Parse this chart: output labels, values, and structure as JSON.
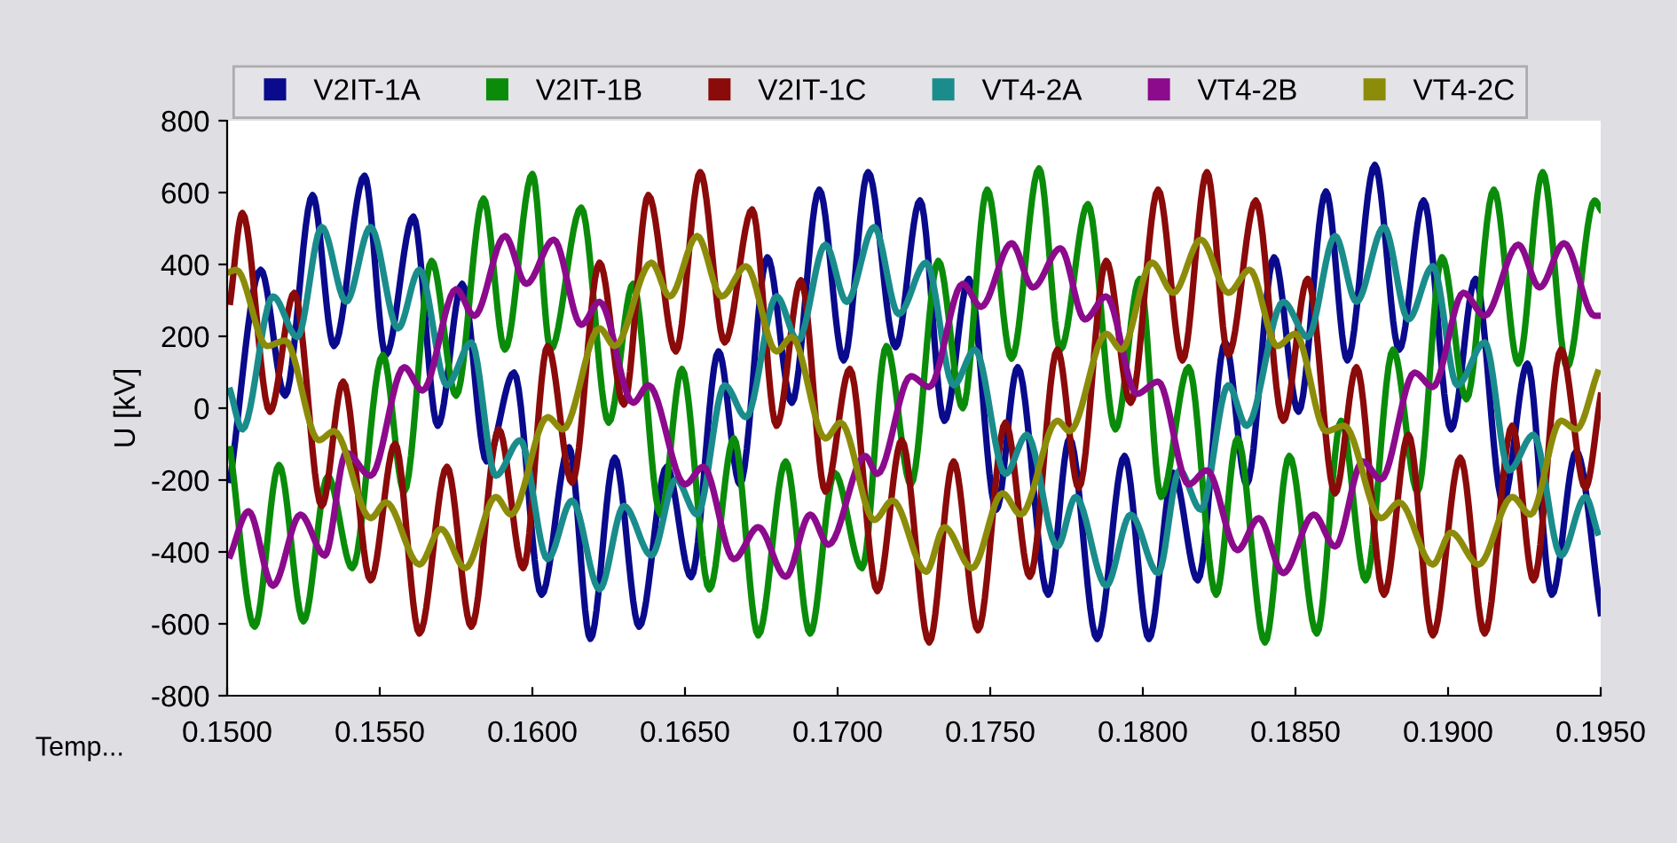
{
  "chart_data": {
    "type": "line",
    "ylabel": "U [kV]",
    "xlabel": "Temp...",
    "xlim": [
      0.15,
      0.195
    ],
    "xticks": [
      {
        "value": 0.15,
        "label": "0.1500"
      },
      {
        "value": 0.155,
        "label": "0.1550"
      },
      {
        "value": 0.16,
        "label": "0.1600"
      },
      {
        "value": 0.165,
        "label": "0.1650"
      },
      {
        "value": 0.17,
        "label": "0.1700"
      },
      {
        "value": 0.175,
        "label": "0.1750"
      },
      {
        "value": 0.18,
        "label": "0.1800"
      },
      {
        "value": 0.185,
        "label": "0.1850"
      },
      {
        "value": 0.19,
        "label": "0.1900"
      },
      {
        "value": 0.195,
        "label": "0.1950"
      }
    ],
    "ylim": [
      -800,
      800
    ],
    "yticks": [
      -800,
      -600,
      -400,
      -200,
      0,
      200,
      400,
      600,
      800
    ],
    "grid": false,
    "legend": "top",
    "marker": "none",
    "line_style": "solid",
    "series": [
      {
        "name": "V2IT-1A",
        "color": "#0a0a8c",
        "x": [
          0.1501,
          0.1511,
          0.1519,
          0.1528,
          0.1535,
          0.1545,
          0.1552,
          0.1561,
          0.1569,
          0.1577,
          0.1585,
          0.1594,
          0.1603,
          0.1612,
          0.1619,
          0.1627,
          0.1635,
          0.1644,
          0.1652,
          0.1661,
          0.1668,
          0.1677,
          0.1685,
          0.1694,
          0.1702,
          0.171,
          0.1719,
          0.1727,
          0.1735,
          0.1743,
          0.1752,
          0.1759,
          0.1769,
          0.1776,
          0.1785,
          0.1794,
          0.1802,
          0.181,
          0.1818,
          0.1827,
          0.1834,
          0.1843,
          0.1851,
          0.186,
          0.1867,
          0.1876,
          0.1884,
          0.1892,
          0.1901,
          0.1909,
          0.1918,
          0.1926,
          0.1934,
          0.1942,
          0.195
        ],
        "values": [
          -200,
          385,
          35,
          593,
          173,
          647,
          148,
          533,
          -49,
          346,
          -148,
          99,
          -519,
          -109,
          -642,
          -138,
          -608,
          -163,
          -470,
          158,
          -212,
          420,
          15,
          608,
          133,
          657,
          170,
          578,
          -35,
          360,
          -282,
          114,
          -519,
          -84,
          -642,
          -133,
          -642,
          -180,
          -479,
          183,
          -212,
          420,
          -10,
          603,
          133,
          677,
          163,
          578,
          -59,
          360,
          -262,
          124,
          -519,
          -120,
          -570
        ]
      },
      {
        "name": "V2IT-1B",
        "color": "#0a8c0a",
        "x": [
          0.1501,
          0.1509,
          0.1517,
          0.1525,
          0.1533,
          0.1541,
          0.1551,
          0.1558,
          0.1567,
          0.1575,
          0.1584,
          0.1591,
          0.16,
          0.1606,
          0.1616,
          0.1625,
          0.1633,
          0.1642,
          0.1649,
          0.1658,
          0.1666,
          0.1674,
          0.1683,
          0.1691,
          0.1699,
          0.1708,
          0.1716,
          0.1724,
          0.1733,
          0.1741,
          0.1749,
          0.1757,
          0.1766,
          0.1773,
          0.1782,
          0.1791,
          0.1799,
          0.1806,
          0.1815,
          0.1824,
          0.1831,
          0.184,
          0.1848,
          0.1857,
          0.1865,
          0.1873,
          0.1882,
          0.189,
          0.1898,
          0.1906,
          0.1915,
          0.1923,
          0.1931,
          0.1939,
          0.1948,
          0.195
        ],
        "values": [
          -114,
          -608,
          -158,
          -593,
          -190,
          -445,
          148,
          -232,
          410,
          35,
          583,
          163,
          652,
          163,
          558,
          -40,
          346,
          -296,
          109,
          -504,
          -84,
          -632,
          -148,
          -627,
          -180,
          -445,
          173,
          -212,
          410,
          0,
          608,
          138,
          667,
          163,
          568,
          -59,
          360,
          -247,
          114,
          -519,
          -84,
          -652,
          -133,
          -627,
          -35,
          -479,
          163,
          -232,
          420,
          25,
          608,
          124,
          657,
          114,
          578,
          553
        ]
      },
      {
        "name": "V2IT-1C",
        "color": "#8b0a0a",
        "x": [
          0.1501,
          0.1505,
          0.1514,
          0.1522,
          0.1531,
          0.1538,
          0.1547,
          0.1555,
          0.1563,
          0.1572,
          0.158,
          0.1589,
          0.1597,
          0.1605,
          0.1613,
          0.1622,
          0.163,
          0.1638,
          0.1647,
          0.1655,
          0.1663,
          0.1672,
          0.168,
          0.1688,
          0.1696,
          0.1704,
          0.1713,
          0.1721,
          0.173,
          0.1738,
          0.1746,
          0.1755,
          0.1763,
          0.1772,
          0.1779,
          0.1788,
          0.1796,
          0.1805,
          0.1813,
          0.1821,
          0.1828,
          0.1837,
          0.1846,
          0.1854,
          0.1863,
          0.187,
          0.1879,
          0.1887,
          0.1895,
          0.1904,
          0.1912,
          0.1921,
          0.1928,
          0.1937,
          0.1945,
          0.195
        ],
        "values": [
          296,
          543,
          -10,
          321,
          -272,
          74,
          -479,
          -99,
          -627,
          -163,
          -608,
          -59,
          -445,
          173,
          -207,
          405,
          10,
          593,
          158,
          657,
          183,
          553,
          -49,
          356,
          -232,
          109,
          -509,
          -89,
          -652,
          -148,
          -618,
          -40,
          -469,
          163,
          -222,
          410,
          15,
          608,
          133,
          657,
          148,
          578,
          -35,
          360,
          -237,
          114,
          -519,
          -74,
          -632,
          -138,
          -627,
          -49,
          -479,
          163,
          -222,
          35
        ]
      },
      {
        "name": "VT4-2A",
        "color": "#1a8c8c",
        "x": [
          0.1501,
          0.1505,
          0.1515,
          0.1523,
          0.1531,
          0.1539,
          0.1547,
          0.1556,
          0.1563,
          0.1572,
          0.158,
          0.1588,
          0.1596,
          0.1605,
          0.1613,
          0.1622,
          0.163,
          0.1639,
          0.1647,
          0.1654,
          0.1663,
          0.167,
          0.168,
          0.1687,
          0.1696,
          0.1703,
          0.1712,
          0.172,
          0.1729,
          0.1738,
          0.1745,
          0.1755,
          0.1762,
          0.1772,
          0.1778,
          0.1788,
          0.1796,
          0.1805,
          0.1812,
          0.1819,
          0.1828,
          0.1834,
          0.1846,
          0.1854,
          0.1863,
          0.187,
          0.1879,
          0.1887,
          0.1895,
          0.1903,
          0.1912,
          0.192,
          0.1928,
          0.1937,
          0.1945,
          0.1949
        ],
        "values": [
          49,
          -59,
          311,
          198,
          504,
          296,
          504,
          222,
          385,
          64,
          183,
          -188,
          -89,
          -420,
          -257,
          -504,
          -272,
          -410,
          -198,
          -296,
          64,
          -25,
          311,
          188,
          455,
          296,
          504,
          262,
          405,
          64,
          163,
          -183,
          -74,
          -385,
          -247,
          -494,
          -296,
          -459,
          -173,
          -282,
          64,
          -49,
          296,
          198,
          479,
          296,
          504,
          247,
          395,
          64,
          183,
          -173,
          -74,
          -410,
          -247,
          -346
        ]
      },
      {
        "name": "VT4-2B",
        "color": "#8c0a8c",
        "x": [
          0.1501,
          0.1507,
          0.1515,
          0.1524,
          0.1532,
          0.1539,
          0.1547,
          0.1558,
          0.1564,
          0.1575,
          0.1581,
          0.1591,
          0.1598,
          0.1607,
          0.1616,
          0.1622,
          0.1633,
          0.1638,
          0.165,
          0.1656,
          0.1666,
          0.1674,
          0.1683,
          0.1691,
          0.1697,
          0.1709,
          0.1713,
          0.1724,
          0.173,
          0.1741,
          0.1747,
          0.1757,
          0.1764,
          0.1773,
          0.1781,
          0.1788,
          0.1798,
          0.1805,
          0.1815,
          0.1821,
          0.1831,
          0.1838,
          0.1846,
          0.1856,
          0.1863,
          0.1872,
          0.1878,
          0.1889,
          0.1895,
          0.1905,
          0.1912,
          0.1923,
          0.193,
          0.1938,
          0.1948,
          0.195
        ],
        "values": [
          -410,
          -287,
          -494,
          -296,
          -410,
          -124,
          -188,
          114,
          49,
          331,
          257,
          479,
          346,
          469,
          232,
          296,
          15,
          64,
          -212,
          -163,
          -420,
          -331,
          -469,
          -296,
          -380,
          -133,
          -183,
          89,
          59,
          346,
          282,
          459,
          336,
          445,
          247,
          311,
          40,
          74,
          -212,
          -173,
          -395,
          -306,
          -459,
          -296,
          -385,
          -148,
          -198,
          99,
          59,
          321,
          257,
          455,
          336,
          459,
          257,
          257
        ]
      },
      {
        "name": "VT4-2C",
        "color": "#8c8c0a",
        "x": [
          0.1501,
          0.1503,
          0.1513,
          0.1519,
          0.153,
          0.1535,
          0.1547,
          0.1552,
          0.1563,
          0.157,
          0.1578,
          0.1588,
          0.1593,
          0.1605,
          0.161,
          0.1622,
          0.1627,
          0.1639,
          0.1645,
          0.1654,
          0.1662,
          0.167,
          0.168,
          0.1685,
          0.1696,
          0.1701,
          0.1712,
          0.1718,
          0.1729,
          0.1735,
          0.1744,
          0.1754,
          0.176,
          0.1772,
          0.1776,
          0.1788,
          0.1793,
          0.1803,
          0.181,
          0.1819,
          0.1828,
          0.1835,
          0.1844,
          0.185,
          0.186,
          0.1866,
          0.1878,
          0.1884,
          0.1895,
          0.1901,
          0.191,
          0.1921,
          0.1927,
          0.1937,
          0.1942,
          0.1949
        ],
        "values": [
          380,
          385,
          173,
          188,
          -89,
          -64,
          -306,
          -262,
          -435,
          -336,
          -445,
          -247,
          -296,
          -25,
          -59,
          222,
          173,
          405,
          311,
          479,
          311,
          395,
          158,
          198,
          -84,
          -40,
          -311,
          -257,
          -455,
          -331,
          -445,
          -237,
          -296,
          -35,
          -64,
          207,
          163,
          405,
          321,
          469,
          321,
          385,
          173,
          207,
          -64,
          -49,
          -306,
          -262,
          -435,
          -346,
          -435,
          -247,
          -296,
          -35,
          -59,
          99
        ]
      }
    ]
  }
}
